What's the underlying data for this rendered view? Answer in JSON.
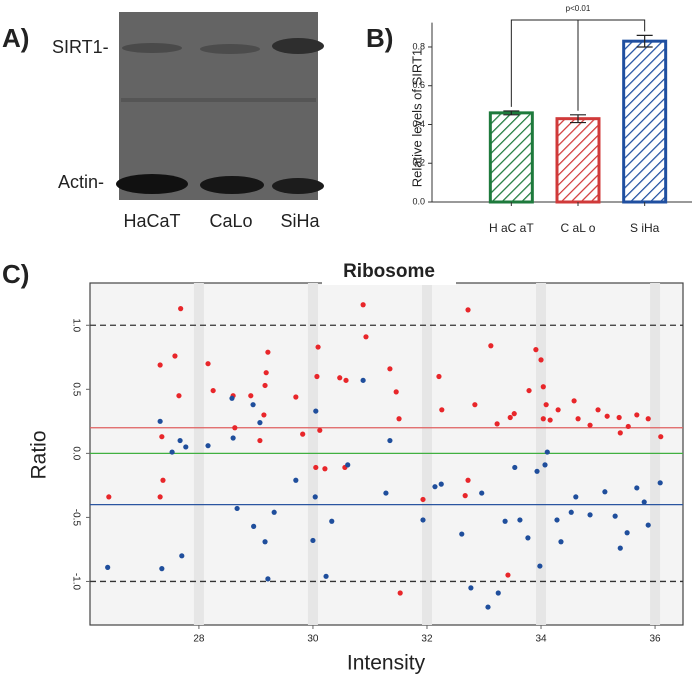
{
  "blot": {
    "label": "A)",
    "bands": [
      "SIRT1-",
      "Actin-"
    ],
    "lanes": [
      "HaCaT",
      "CaLo",
      "SiHa"
    ]
  },
  "chart_data": [
    {
      "type": "bar",
      "panel_label": "B)",
      "ylabel": "Relative levels of SIRT1",
      "categories": [
        "H aC aT",
        "C aL o",
        "S iHa"
      ],
      "values": [
        0.46,
        0.43,
        0.83
      ],
      "errors": [
        0.01,
        0.02,
        0.03
      ],
      "colors": [
        "#1e7a3c",
        "#d03a3a",
        "#1f4fa0"
      ],
      "annotation": "p<0.01",
      "ylim": [
        0,
        0.9
      ],
      "yticks": [
        {
          "value": 0,
          "label": "0.0"
        },
        0.2,
        0.4,
        0.6,
        0.8
      ]
    },
    {
      "type": "scatter",
      "panel_label": "C)",
      "title": "Ribosome",
      "xlabel": "Intensity",
      "ylabel": "Ratio",
      "xlim": [
        26.09,
        36.49
      ],
      "ylim": [
        -1.34,
        1.33
      ],
      "xticks": [
        28,
        30,
        32,
        34,
        36
      ],
      "yticks": [
        {
          "value": 1,
          "label": "1.0"
        },
        0.5,
        {
          "value": 0,
          "label": "0.0"
        },
        -0.5,
        {
          "value": -1,
          "label": "-1.0"
        }
      ],
      "hlines": [
        {
          "value": 1,
          "color": "#333333",
          "dashed": true
        },
        {
          "value": -1,
          "color": "#333333",
          "dashed": true
        },
        {
          "value": 0.2,
          "color": "#e06060",
          "dashed": false
        },
        {
          "value": 0,
          "color": "#40b040",
          "dashed": false
        },
        {
          "value": -0.4,
          "color": "#2a55a0",
          "dashed": false
        }
      ],
      "series": [
        {
          "color": "#e8262a",
          "x": [
            26.42,
            27.32,
            27.32,
            27.37,
            27.35,
            27.68,
            27.58,
            27.65,
            28.16,
            28.25,
            28.6,
            28.63,
            28.91,
            29.21,
            29.18,
            29.16,
            29.14,
            29.07,
            29.7,
            29.82,
            30.09,
            30.07,
            30.12,
            30.05,
            30.21,
            30.47,
            30.58,
            30.56,
            30.88,
            30.93,
            31.35,
            31.46,
            31.51,
            31.53,
            31.93,
            32.21,
            32.26,
            32.72,
            32.67,
            32.72,
            32.84,
            33.12,
            33.23,
            33.46,
            33.53,
            33.42,
            33.79,
            33.91,
            34.0,
            34.04,
            34.09,
            34.04,
            34.16,
            34.3,
            34.58,
            34.65,
            34.86,
            35.0,
            35.16,
            35.37,
            35.53,
            35.68,
            35.88,
            36.1,
            35.39
          ],
          "y": [
            -0.34,
            0.69,
            -0.34,
            -0.21,
            0.13,
            1.13,
            0.76,
            0.45,
            0.7,
            0.49,
            0.45,
            0.2,
            0.45,
            0.79,
            0.63,
            0.53,
            0.3,
            0.1,
            0.44,
            0.15,
            0.83,
            0.6,
            0.18,
            -0.11,
            -0.12,
            0.59,
            0.57,
            -0.11,
            1.16,
            0.91,
            0.66,
            0.48,
            0.27,
            -1.09,
            -0.36,
            0.6,
            0.34,
            1.12,
            -0.33,
            -0.21,
            0.38,
            0.84,
            0.23,
            0.28,
            0.31,
            -0.95,
            0.49,
            0.81,
            0.73,
            0.52,
            0.38,
            0.27,
            0.26,
            0.34,
            0.41,
            0.27,
            0.22,
            0.34,
            0.29,
            0.28,
            0.21,
            0.3,
            0.27,
            0.13,
            0.16
          ]
        },
        {
          "color": "#1f4e9c",
          "x": [
            26.4,
            27.32,
            27.35,
            27.53,
            27.67,
            27.7,
            27.77,
            28.16,
            28.58,
            28.6,
            28.95,
            29.07,
            28.67,
            28.96,
            29.16,
            29.32,
            29.21,
            29.7,
            30.05,
            30.04,
            30.0,
            30.23,
            30.33,
            30.88,
            30.61,
            31.35,
            31.28,
            31.93,
            32.14,
            32.25,
            32.61,
            32.77,
            32.96,
            33.07,
            33.25,
            33.37,
            33.54,
            33.63,
            33.77,
            33.93,
            34.07,
            34.11,
            33.98,
            34.28,
            34.35,
            34.53,
            34.61,
            34.86,
            35.12,
            35.3,
            35.39,
            35.51,
            35.68,
            35.81,
            35.88,
            36.09
          ],
          "y": [
            -0.89,
            0.25,
            -0.9,
            0.01,
            0.1,
            -0.8,
            0.05,
            0.06,
            0.43,
            0.12,
            0.38,
            0.24,
            -0.43,
            -0.57,
            -0.69,
            -0.46,
            -0.98,
            -0.21,
            0.33,
            -0.34,
            -0.68,
            -0.96,
            -0.53,
            0.57,
            -0.09,
            0.1,
            -0.31,
            -0.52,
            -0.26,
            -0.24,
            -0.63,
            -1.05,
            -0.31,
            -1.2,
            -1.09,
            -0.53,
            -0.11,
            -0.52,
            -0.66,
            -0.14,
            -0.09,
            0.01,
            -0.88,
            -0.52,
            -0.69,
            -0.46,
            -0.34,
            -0.48,
            -0.3,
            -0.49,
            -0.74,
            -0.62,
            -0.27,
            -0.38,
            -0.56,
            -0.23
          ]
        }
      ]
    }
  ]
}
